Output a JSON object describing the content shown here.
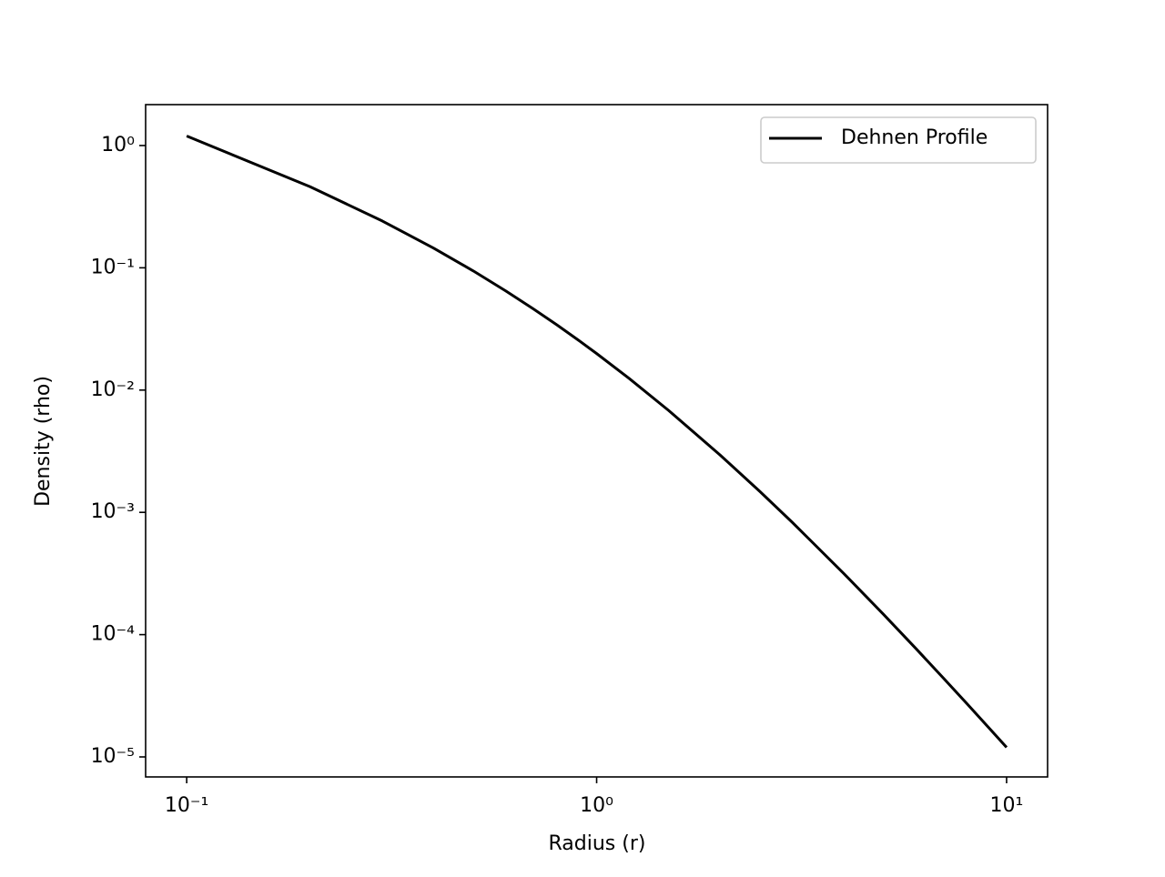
{
  "chart_data": {
    "type": "line",
    "xlabel": "Radius (r)",
    "ylabel": "Density (rho)",
    "xscale": "log",
    "yscale": "log",
    "x": [
      0.1,
      0.2,
      0.3,
      0.4,
      0.5,
      0.6,
      0.7,
      0.8,
      0.9,
      1.0,
      1.2,
      1.5,
      2,
      2.5,
      3,
      4,
      5,
      6,
      7,
      8,
      9,
      10
    ],
    "series": [
      {
        "name": "Dehnen Profile",
        "color": "#000000",
        "values": [
          1.1958,
          0.4605,
          0.2415,
          0.145,
          0.09431,
          0.06476,
          0.04628,
          0.03411,
          0.02578,
          0.01989,
          0.012456,
          0.006791,
          0.002947,
          0.0014848,
          0.000829,
          0.0003183,
          0.0001474,
          7.734e-05,
          4.441e-05,
          2.729e-05,
          1.768e-05,
          1.196e-05
        ]
      }
    ],
    "xlim": [
      0.0794,
      12.59
    ],
    "ylim": [
      6.86e-06,
      2.16
    ],
    "xticks": [
      {
        "value": 0.1,
        "label": "10⁻¹"
      },
      {
        "value": 1,
        "label": "10⁰"
      },
      {
        "value": 10,
        "label": "10¹"
      }
    ],
    "yticks": [
      {
        "value": 1e-05,
        "label": "10⁻⁵"
      },
      {
        "value": 0.0001,
        "label": "10⁻⁴"
      },
      {
        "value": 0.001,
        "label": "10⁻³"
      },
      {
        "value": 0.01,
        "label": "10⁻²"
      },
      {
        "value": 0.1,
        "label": "10⁻¹"
      },
      {
        "value": 1,
        "label": "10⁰"
      }
    ],
    "grid": false,
    "legend": "upper right"
  }
}
